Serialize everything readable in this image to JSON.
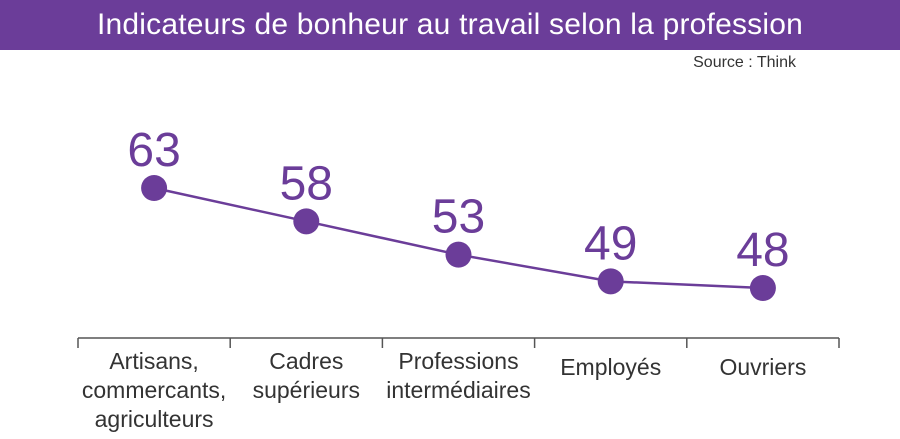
{
  "header": {
    "title": "Indicateurs de bonheur au travail selon la profession",
    "source": "Source : Think"
  },
  "colors": {
    "accent": "#6b3d99",
    "axis": "#555555",
    "text": "#333333"
  },
  "chart_data": {
    "type": "line",
    "title": "Indicateurs de bonheur au travail selon la profession",
    "categories": [
      [
        "Artisans,",
        "commercants,",
        "agriculteurs"
      ],
      [
        "Cadres",
        "supérieurs"
      ],
      [
        "Professions",
        "intermédiaires"
      ],
      [
        "Employés"
      ],
      [
        "Ouvriers"
      ]
    ],
    "values": [
      63,
      58,
      53,
      49,
      48
    ],
    "ylim": [
      40,
      70
    ],
    "grid": false,
    "legend": "none",
    "data_labels": true
  }
}
